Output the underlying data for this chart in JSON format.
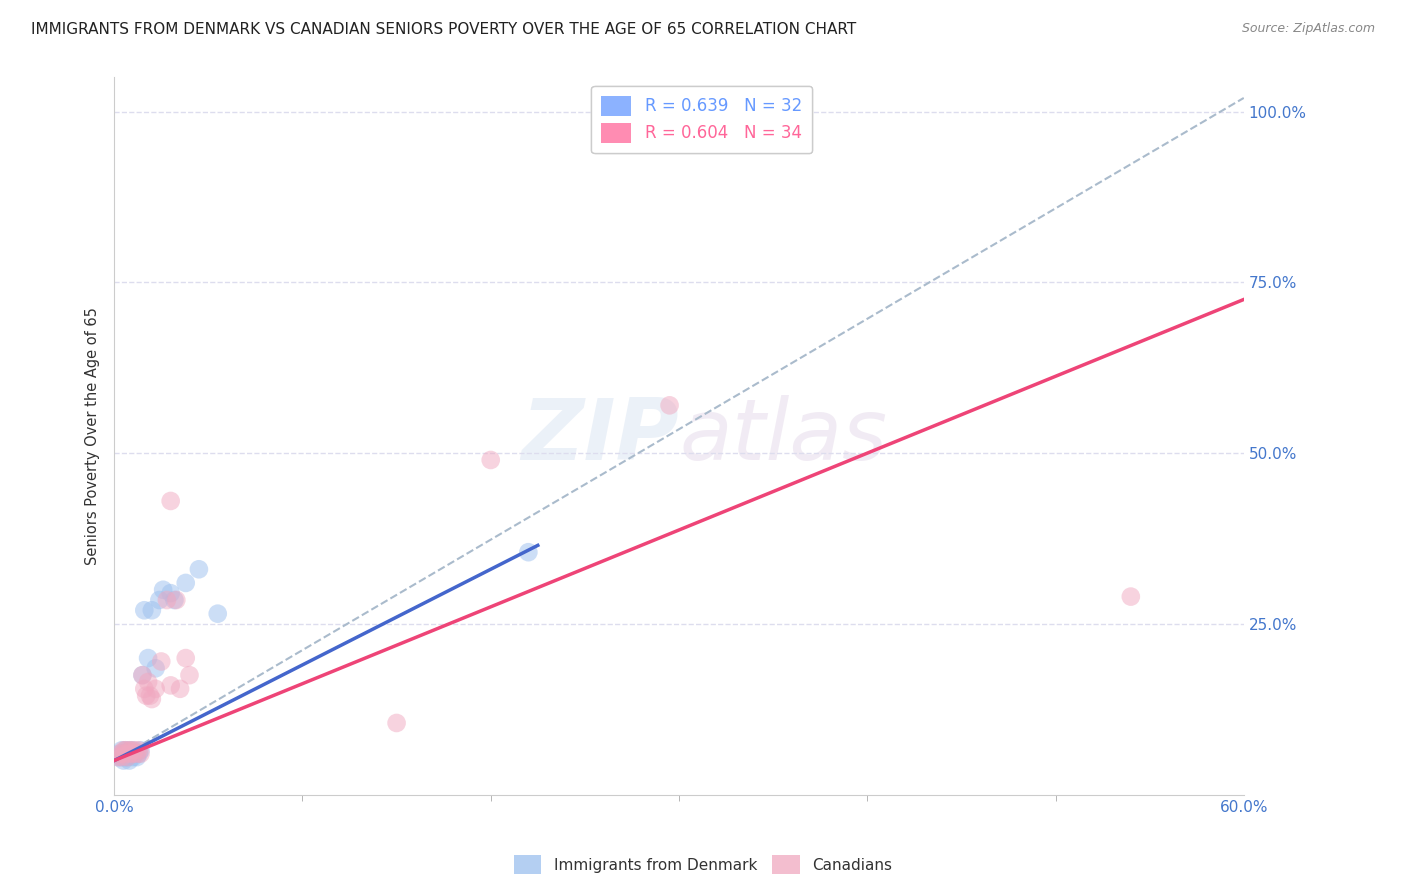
{
  "title": "IMMIGRANTS FROM DENMARK VS CANADIAN SENIORS POVERTY OVER THE AGE OF 65 CORRELATION CHART",
  "source": "Source: ZipAtlas.com",
  "ylabel": "Seniors Poverty Over the Age of 65",
  "ytick_labels": [
    "100.0%",
    "75.0%",
    "50.0%",
    "25.0%"
  ],
  "ytick_values": [
    1.0,
    0.75,
    0.5,
    0.25
  ],
  "legend_entries": [
    {
      "label": "R = 0.639   N = 32",
      "color": "#6699ff"
    },
    {
      "label": "R = 0.604   N = 34",
      "color": "#ff6699"
    }
  ],
  "legend_bottom": [
    "Immigrants from Denmark",
    "Canadians"
  ],
  "xlim": [
    0.0,
    0.6
  ],
  "ylim": [
    0.0,
    1.05
  ],
  "blue_scatter_x": [
    0.002,
    0.003,
    0.004,
    0.004,
    0.005,
    0.005,
    0.006,
    0.006,
    0.007,
    0.007,
    0.008,
    0.008,
    0.009,
    0.01,
    0.01,
    0.011,
    0.012,
    0.013,
    0.014,
    0.015,
    0.016,
    0.018,
    0.02,
    0.022,
    0.024,
    0.026,
    0.03,
    0.032,
    0.038,
    0.045,
    0.055,
    0.22
  ],
  "blue_scatter_y": [
    0.055,
    0.06,
    0.055,
    0.065,
    0.05,
    0.06,
    0.055,
    0.065,
    0.055,
    0.06,
    0.05,
    0.065,
    0.06,
    0.055,
    0.065,
    0.06,
    0.055,
    0.06,
    0.065,
    0.175,
    0.27,
    0.2,
    0.27,
    0.185,
    0.285,
    0.3,
    0.295,
    0.285,
    0.31,
    0.33,
    0.265,
    0.355
  ],
  "pink_scatter_x": [
    0.002,
    0.003,
    0.004,
    0.005,
    0.005,
    0.006,
    0.007,
    0.008,
    0.008,
    0.009,
    0.01,
    0.011,
    0.012,
    0.013,
    0.014,
    0.015,
    0.016,
    0.017,
    0.018,
    0.019,
    0.02,
    0.022,
    0.025,
    0.028,
    0.03,
    0.03,
    0.033,
    0.035,
    0.038,
    0.04,
    0.15,
    0.2,
    0.295,
    0.54
  ],
  "pink_scatter_y": [
    0.055,
    0.06,
    0.055,
    0.065,
    0.06,
    0.065,
    0.055,
    0.06,
    0.065,
    0.065,
    0.06,
    0.065,
    0.06,
    0.065,
    0.06,
    0.175,
    0.155,
    0.145,
    0.165,
    0.145,
    0.14,
    0.155,
    0.195,
    0.285,
    0.43,
    0.16,
    0.285,
    0.155,
    0.2,
    0.175,
    0.105,
    0.49,
    0.57,
    0.29
  ],
  "blue_line_x": [
    0.0,
    0.225
  ],
  "blue_line_y": [
    0.05,
    0.365
  ],
  "pink_line_x": [
    0.0,
    0.6
  ],
  "pink_line_y": [
    0.05,
    0.725
  ],
  "dashed_line_x": [
    0.0,
    0.6
  ],
  "dashed_line_y": [
    0.05,
    1.02
  ],
  "scatter_size": 180,
  "scatter_alpha": 0.5,
  "blue_color": "#9bbfee",
  "pink_color": "#f0a8c0",
  "blue_line_color": "#4466cc",
  "pink_line_color": "#ee4477",
  "dashed_line_color": "#aabbcc",
  "grid_color": "#ddddee",
  "background_color": "#ffffff",
  "title_fontsize": 11,
  "source_fontsize": 9,
  "ytick_color": "#4477cc",
  "xtick_color": "#4477cc",
  "watermark_color": "#c8d8ec",
  "watermark_alpha": 0.35
}
